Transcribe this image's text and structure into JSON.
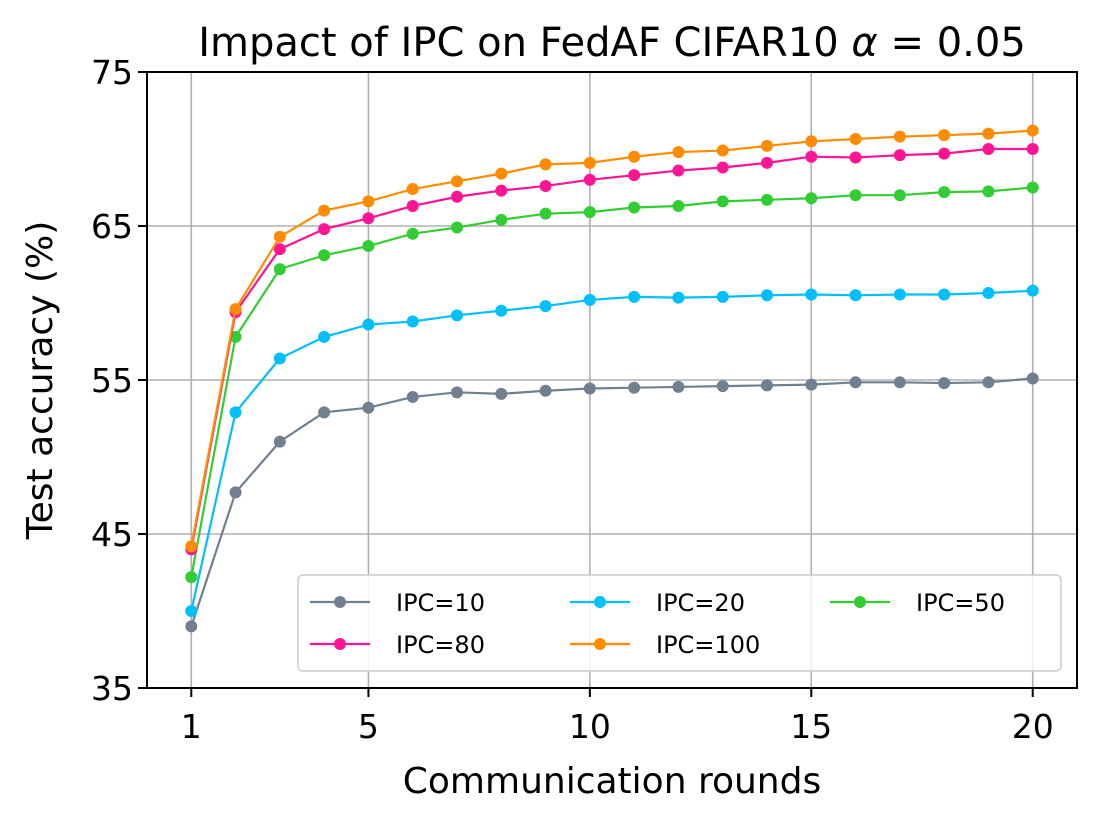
{
  "chart_data": {
    "type": "line",
    "title_prefix": "Impact of IPC on FedAF CIFAR10 ",
    "title_alpha": "α",
    "title_suffix": " = 0.05",
    "xlabel": "Communication rounds",
    "ylabel": "Test accuracy (%)",
    "xlim": [
      0,
      21
    ],
    "ylim": [
      35,
      75
    ],
    "xticks": [
      1,
      5,
      10,
      15,
      20
    ],
    "yticks": [
      35,
      45,
      55,
      65,
      75
    ],
    "grid": true,
    "legend_position": "lower-right",
    "legend_columns": 3,
    "x": [
      1,
      2,
      3,
      4,
      5,
      6,
      7,
      8,
      9,
      10,
      11,
      12,
      13,
      14,
      15,
      16,
      17,
      18,
      19,
      20
    ],
    "series": [
      {
        "name": "IPC=10",
        "color": "#708090",
        "values": [
          39.0,
          47.7,
          51.0,
          52.9,
          53.2,
          53.9,
          54.2,
          54.1,
          54.3,
          54.45,
          54.5,
          54.55,
          54.6,
          54.65,
          54.7,
          54.85,
          54.85,
          54.8,
          54.85,
          55.1
        ]
      },
      {
        "name": "IPC=20",
        "color": "#00BFFF",
        "values": [
          40.0,
          52.9,
          56.4,
          57.8,
          58.6,
          58.8,
          59.2,
          59.5,
          59.8,
          60.2,
          60.4,
          60.35,
          60.4,
          60.5,
          60.55,
          60.5,
          60.55,
          60.55,
          60.65,
          60.8
        ]
      },
      {
        "name": "IPC=50",
        "color": "#32CD32",
        "values": [
          42.2,
          57.8,
          62.2,
          63.1,
          63.7,
          64.5,
          64.9,
          65.4,
          65.8,
          65.9,
          66.2,
          66.3,
          66.6,
          66.7,
          66.8,
          67.0,
          67.0,
          67.2,
          67.25,
          67.5
        ]
      },
      {
        "name": "IPC=80",
        "color": "#FF1493",
        "values": [
          44.0,
          59.4,
          63.5,
          64.8,
          65.5,
          66.3,
          66.9,
          67.3,
          67.6,
          68.0,
          68.3,
          68.6,
          68.8,
          69.1,
          69.5,
          69.45,
          69.6,
          69.7,
          70.0,
          70.0
        ]
      },
      {
        "name": "IPC=100",
        "color": "#FF8C00",
        "values": [
          44.2,
          59.6,
          64.3,
          66.0,
          66.6,
          67.4,
          67.9,
          68.4,
          69.0,
          69.1,
          69.5,
          69.8,
          69.9,
          70.2,
          70.5,
          70.65,
          70.8,
          70.9,
          71.0,
          71.2
        ]
      }
    ]
  }
}
